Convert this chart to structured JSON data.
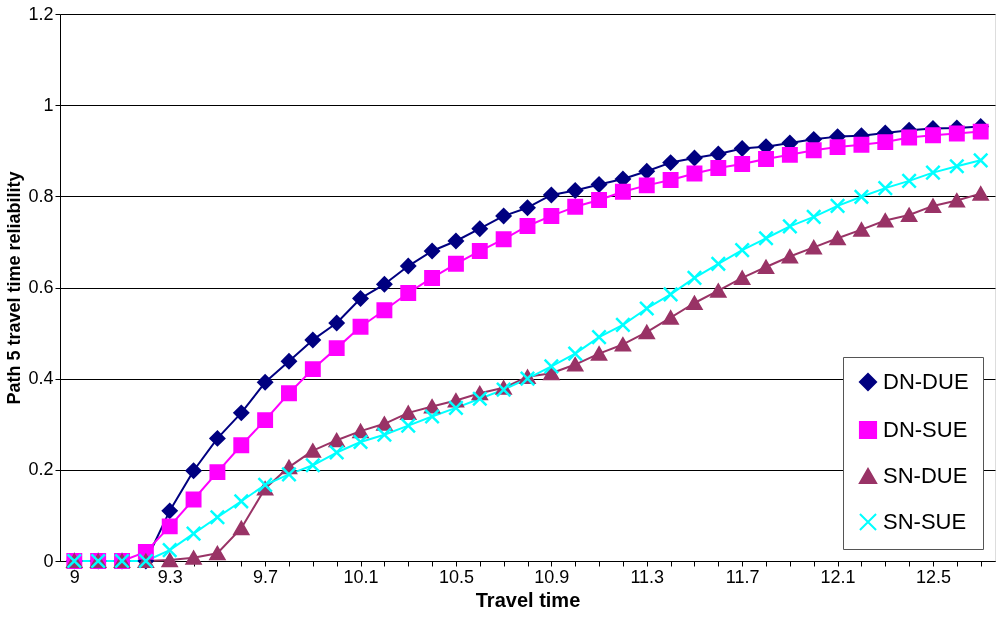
{
  "chart_data": {
    "type": "line",
    "xlabel": "Travel time",
    "ylabel": "Path 5 travel time reliability",
    "categories": [
      "9",
      null,
      null,
      null,
      "9.3",
      null,
      null,
      null,
      "9.7",
      null,
      null,
      null,
      "10.1",
      null,
      null,
      null,
      "10.5",
      null,
      null,
      null,
      "10.9",
      null,
      null,
      null,
      "11.3",
      null,
      null,
      null,
      "11.7",
      null,
      null,
      null,
      "12.1",
      null,
      null,
      null,
      "12.5",
      null,
      null
    ],
    "ylim": [
      0,
      1.2
    ],
    "yticks": [
      0,
      0.2,
      0.4,
      0.6,
      0.8,
      1,
      1.2
    ],
    "grid": "y",
    "legend": "right",
    "series": [
      {
        "name": "DN-DUE",
        "color": "#000080",
        "marker": "diamond",
        "values": [
          0,
          0,
          0,
          0,
          0.11,
          0.198,
          0.269,
          0.325,
          0.392,
          0.438,
          0.485,
          0.522,
          0.576,
          0.607,
          0.647,
          0.68,
          0.702,
          0.729,
          0.757,
          0.775,
          0.803,
          0.813,
          0.826,
          0.838,
          0.855,
          0.874,
          0.884,
          0.893,
          0.905,
          0.909,
          0.917,
          0.925,
          0.931,
          0.933,
          0.939,
          0.945,
          0.949,
          0.95,
          0.953
        ]
      },
      {
        "name": "DN-SUE",
        "color": "#ff00ff",
        "marker": "square",
        "values": [
          0,
          0,
          0,
          0.02,
          0.076,
          0.135,
          0.195,
          0.254,
          0.309,
          0.368,
          0.421,
          0.467,
          0.514,
          0.55,
          0.588,
          0.621,
          0.652,
          0.68,
          0.706,
          0.735,
          0.757,
          0.777,
          0.792,
          0.81,
          0.824,
          0.836,
          0.85,
          0.862,
          0.871,
          0.882,
          0.891,
          0.901,
          0.908,
          0.913,
          0.919,
          0.929,
          0.934,
          0.938,
          0.942
        ]
      },
      {
        "name": "SN-DUE",
        "color": "#993366",
        "marker": "triangle",
        "values": [
          0,
          0,
          0,
          0,
          0.002,
          0.007,
          0.017,
          0.072,
          0.159,
          0.206,
          0.242,
          0.265,
          0.285,
          0.301,
          0.325,
          0.339,
          0.352,
          0.368,
          0.38,
          0.404,
          0.412,
          0.431,
          0.455,
          0.475,
          0.502,
          0.534,
          0.566,
          0.593,
          0.621,
          0.645,
          0.668,
          0.688,
          0.708,
          0.727,
          0.747,
          0.759,
          0.779,
          0.791,
          0.806
        ]
      },
      {
        "name": "SN-SUE",
        "color": "#00ffff",
        "marker": "cross",
        "values": [
          0,
          0,
          0,
          0,
          0.024,
          0.06,
          0.096,
          0.131,
          0.167,
          0.19,
          0.21,
          0.238,
          0.261,
          0.277,
          0.297,
          0.317,
          0.336,
          0.356,
          0.376,
          0.4,
          0.427,
          0.455,
          0.491,
          0.518,
          0.554,
          0.585,
          0.621,
          0.652,
          0.682,
          0.708,
          0.734,
          0.755,
          0.779,
          0.799,
          0.818,
          0.834,
          0.852,
          0.866,
          0.879
        ]
      }
    ]
  }
}
